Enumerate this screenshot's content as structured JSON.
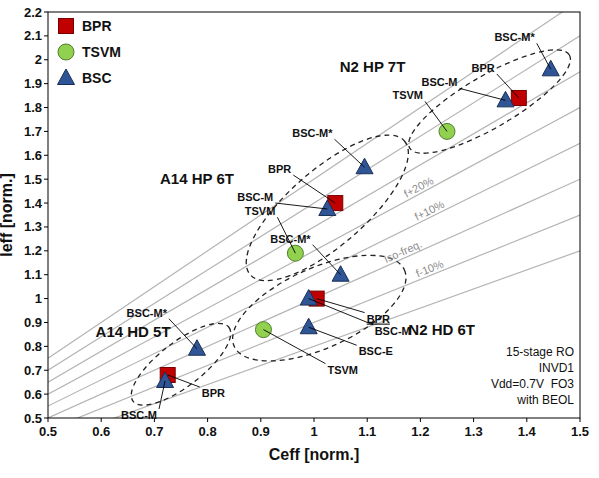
{
  "chart_data": {
    "type": "scatter",
    "x_label": "Ceff [norm.]",
    "y_label": "Ieff [norm.]",
    "xlim": [
      0.5,
      1.5
    ],
    "xticks": [
      0.5,
      0.6,
      0.7,
      0.8,
      0.9,
      1,
      1.1,
      1.2,
      1.3,
      1.4,
      1.5
    ],
    "ylim": [
      0.5,
      2.2
    ],
    "yticks": [
      0.5,
      0.6,
      0.7,
      0.8,
      0.9,
      1,
      1.1,
      1.2,
      1.3,
      1.4,
      1.5,
      1.6,
      1.7,
      1.8,
      1.9,
      2,
      2.1,
      2.2
    ],
    "grid": false,
    "legend": "top-left",
    "series": [
      {
        "name": "BPR",
        "color": "#c00000",
        "marker": "square",
        "x": [
          0.725,
          1.04,
          1.005,
          1.385
        ],
        "values": [
          0.68,
          1.4,
          1.0,
          1.84
        ],
        "point_labels": [
          "BPR",
          "BPR",
          "BPR",
          "BPR"
        ]
      },
      {
        "name": "TSVM",
        "color": "#92d050",
        "marker": "circle",
        "x": [
          0.965,
          0.905,
          1.25
        ],
        "values": [
          1.19,
          0.87,
          1.7
        ],
        "point_labels": [
          "TSVM",
          "TSVM",
          "TSVM"
        ]
      },
      {
        "name": "BSC",
        "color": "#2f5597",
        "marker": "triangle",
        "x": [
          0.72,
          0.78,
          1.025,
          1.095,
          0.99,
          0.99,
          1.05,
          1.36,
          1.445
        ],
        "values": [
          0.655,
          0.79,
          1.375,
          1.55,
          1.0,
          0.88,
          1.1,
          1.83,
          1.96
        ],
        "point_labels": [
          "BSC-M",
          "BSC-M*",
          "BSC-M",
          "BSC-M*",
          "BSC-M",
          "BSC-E",
          "BSC-M*",
          "BSC-M",
          "BSC-M*"
        ]
      }
    ],
    "reference_lines": [
      {
        "slope": 1.5
      },
      {
        "slope": 1.4
      },
      {
        "slope": 1.3
      },
      {
        "slope": 1.2,
        "label": "f+20%"
      },
      {
        "slope": 1.1,
        "label": "f+10%"
      },
      {
        "slope": 1.0,
        "label": "Iso-freq."
      },
      {
        "slope": 0.9,
        "label": "f-10%"
      },
      {
        "slope": 0.8
      }
    ],
    "groups": [
      {
        "label": "A14 HD 5T",
        "ends": [
          0.66,
          0.57,
          0.84,
          0.88
        ],
        "at": [
          0.66,
          0.86
        ]
      },
      {
        "label": "A14 HP 6T",
        "ends": [
          0.88,
          1.1,
          1.17,
          1.66
        ],
        "at": [
          0.78,
          1.5
        ]
      },
      {
        "label": "N2 HD 6T",
        "ends": [
          0.85,
          0.8,
          1.17,
          1.12
        ],
        "at": [
          1.24,
          0.87
        ]
      },
      {
        "label": "N2 HP 7T",
        "ends": [
          1.18,
          1.63,
          1.48,
          2.02
        ],
        "at": [
          1.11,
          1.97
        ]
      }
    ],
    "notes": [
      "15-stage RO",
      "INVD1",
      "Vdd=0.7V  FO3",
      "with BEOL"
    ]
  }
}
